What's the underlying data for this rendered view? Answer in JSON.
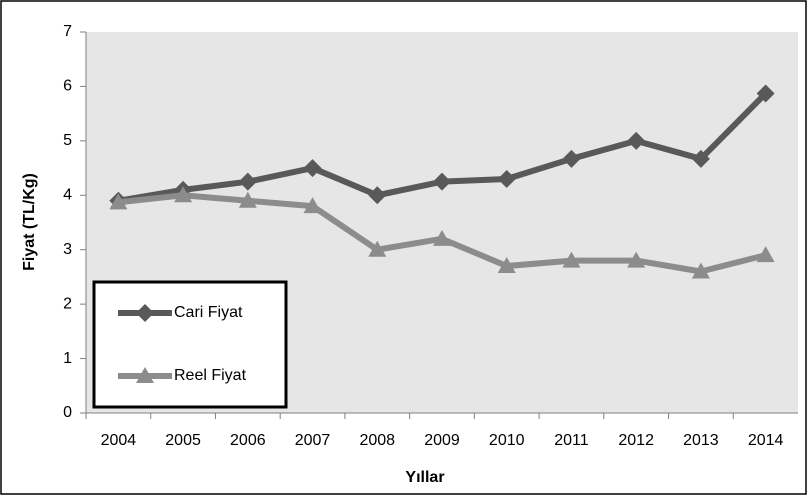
{
  "chart_data": {
    "type": "line",
    "x_label": "Yıllar",
    "y_label": "Fiyat (TL/Kg)",
    "categories": [
      "2004",
      "2005",
      "2006",
      "2007",
      "2008",
      "2009",
      "2010",
      "2011",
      "2012",
      "2013",
      "2014"
    ],
    "series": [
      {
        "name": "Cari Fiyat",
        "color": "#595959",
        "marker": "diamond",
        "values": [
          3.9,
          4.1,
          4.25,
          4.5,
          4.0,
          4.25,
          4.3,
          4.67,
          5.0,
          4.67,
          5.87
        ]
      },
      {
        "name": "Reel Fiyat",
        "color": "#8c8c8c",
        "marker": "triangle",
        "values": [
          3.87,
          4.0,
          3.9,
          3.8,
          3.0,
          3.2,
          2.7,
          2.8,
          2.8,
          2.6,
          2.9
        ]
      }
    ],
    "ylim": [
      0,
      7
    ],
    "yticks": [
      0,
      1,
      2,
      3,
      4,
      5,
      6,
      7
    ],
    "legend": "lower left"
  }
}
